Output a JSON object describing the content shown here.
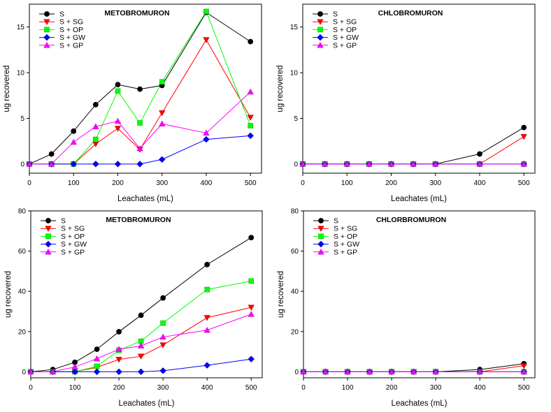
{
  "chart_data": [
    {
      "type": "line",
      "title": "METOBROMURON",
      "xlabel": "Leachates (mL)",
      "ylabel": "ug recovered",
      "xlim": [
        0,
        525
      ],
      "ylim": [
        -1,
        17.5
      ],
      "xticks": [
        0,
        100,
        200,
        300,
        400,
        500
      ],
      "yticks": [
        0,
        5,
        10,
        15
      ],
      "legend": "top-left",
      "grid": false,
      "x": [
        0,
        50,
        100,
        150,
        200,
        250,
        300,
        400,
        500
      ],
      "series": [
        {
          "name": "S",
          "color": "#000000",
          "marker": "circle",
          "values": [
            0,
            1.1,
            3.6,
            6.5,
            8.7,
            8.2,
            8.6,
            16.6,
            13.4
          ]
        },
        {
          "name": "S + SG",
          "color": "#ff0000",
          "marker": "triangle-down",
          "values": [
            0,
            0,
            0,
            2.2,
            3.9,
            1.6,
            5.6,
            13.6,
            5.1
          ]
        },
        {
          "name": "S + OP",
          "color": "#00ff00",
          "marker": "square",
          "values": [
            0,
            0,
            0,
            2.7,
            8.0,
            4.5,
            9.0,
            16.7,
            4.2
          ]
        },
        {
          "name": "S + GW",
          "color": "#0000ff",
          "marker": "diamond",
          "values": [
            0,
            0,
            0,
            0,
            0,
            0,
            0.5,
            2.7,
            3.1
          ]
        },
        {
          "name": "S + GP",
          "color": "#ff00ff",
          "marker": "triangle-up",
          "values": [
            0,
            0,
            2.4,
            4.1,
            4.7,
            1.7,
            4.4,
            3.4,
            7.9
          ]
        }
      ]
    },
    {
      "type": "line",
      "title": "CHLOBROMURON",
      "xlabel": "Leachates (mL)",
      "ylabel": "ug recovered",
      "xlim": [
        0,
        525
      ],
      "ylim": [
        -1,
        17.5
      ],
      "xticks": [
        0,
        100,
        200,
        300,
        400,
        500
      ],
      "yticks": [
        0,
        5,
        10,
        15
      ],
      "legend": "top-left",
      "grid": false,
      "x": [
        0,
        50,
        100,
        150,
        200,
        250,
        300,
        400,
        500
      ],
      "series": [
        {
          "name": "S",
          "color": "#000000",
          "marker": "circle",
          "values": [
            0,
            0,
            0,
            0,
            0,
            0,
            0,
            1.1,
            4.0
          ]
        },
        {
          "name": "S + SG",
          "color": "#ff0000",
          "marker": "triangle-down",
          "values": [
            0,
            0,
            0,
            0,
            0,
            0,
            0,
            0,
            3.0
          ]
        },
        {
          "name": "S + OP",
          "color": "#00ff00",
          "marker": "square",
          "values": [
            0,
            0,
            0,
            0,
            0,
            0,
            0,
            0,
            0
          ]
        },
        {
          "name": "S + GW",
          "color": "#0000ff",
          "marker": "diamond",
          "values": [
            0,
            0,
            0,
            0,
            0,
            0,
            0,
            0,
            0
          ]
        },
        {
          "name": "S + GP",
          "color": "#ff00ff",
          "marker": "triangle-up",
          "values": [
            0,
            0,
            0,
            0,
            0,
            0,
            0,
            0,
            0
          ]
        }
      ]
    },
    {
      "type": "line",
      "title": "METOBROMURON",
      "xlabel": "Leachates (mL)",
      "ylabel": "ug recovered",
      "xlim": [
        0,
        525
      ],
      "ylim": [
        -3,
        80
      ],
      "xticks": [
        0,
        100,
        200,
        300,
        400,
        500
      ],
      "yticks": [
        0,
        20,
        40,
        60,
        80
      ],
      "legend": "top-left",
      "grid": false,
      "x": [
        0,
        50,
        100,
        150,
        200,
        250,
        300,
        400,
        500
      ],
      "series": [
        {
          "name": "S",
          "color": "#000000",
          "marker": "circle",
          "values": [
            0,
            1.1,
            4.7,
            11.2,
            19.9,
            28.1,
            36.7,
            53.3,
            66.7
          ]
        },
        {
          "name": "S + SG",
          "color": "#ff0000",
          "marker": "triangle-down",
          "values": [
            0,
            0,
            0,
            2.2,
            6.1,
            7.7,
            13.3,
            26.9,
            32.0
          ]
        },
        {
          "name": "S + OP",
          "color": "#00ff00",
          "marker": "square",
          "values": [
            0,
            0,
            0,
            2.7,
            10.7,
            15.2,
            24.2,
            40.9,
            45.1
          ]
        },
        {
          "name": "S + GW",
          "color": "#0000ff",
          "marker": "diamond",
          "values": [
            0,
            0,
            0,
            0,
            0,
            0,
            0.5,
            3.2,
            6.3
          ]
        },
        {
          "name": "S + GP",
          "color": "#ff00ff",
          "marker": "triangle-up",
          "values": [
            0,
            0,
            2.4,
            6.5,
            11.2,
            12.9,
            17.3,
            20.7,
            28.6
          ]
        }
      ]
    },
    {
      "type": "line",
      "title": "CHLORBROMURON",
      "xlabel": "Leachates (mL)",
      "ylabel": "ug recovered",
      "xlim": [
        0,
        525
      ],
      "ylim": [
        -3,
        80
      ],
      "xticks": [
        0,
        100,
        200,
        300,
        400,
        500
      ],
      "yticks": [
        0,
        20,
        40,
        60,
        80
      ],
      "legend": "top-left",
      "grid": false,
      "x": [
        0,
        50,
        100,
        150,
        200,
        250,
        300,
        400,
        500
      ],
      "series": [
        {
          "name": "S",
          "color": "#000000",
          "marker": "circle",
          "values": [
            0,
            0,
            0,
            0,
            0,
            0,
            0,
            1.1,
            4.0
          ]
        },
        {
          "name": "S + SG",
          "color": "#ff0000",
          "marker": "triangle-down",
          "values": [
            0,
            0,
            0,
            0,
            0,
            0,
            0,
            0,
            3.0
          ]
        },
        {
          "name": "S + OP",
          "color": "#00ff00",
          "marker": "square",
          "values": [
            0,
            0,
            0,
            0,
            0,
            0,
            0,
            0,
            0
          ]
        },
        {
          "name": "S + GW",
          "color": "#0000ff",
          "marker": "diamond",
          "values": [
            0,
            0,
            0,
            0,
            0,
            0,
            0,
            0,
            0
          ]
        },
        {
          "name": "S + GP",
          "color": "#ff00ff",
          "marker": "triangle-up",
          "values": [
            0,
            0,
            0,
            0,
            0,
            0,
            0,
            0,
            0
          ]
        }
      ]
    }
  ]
}
